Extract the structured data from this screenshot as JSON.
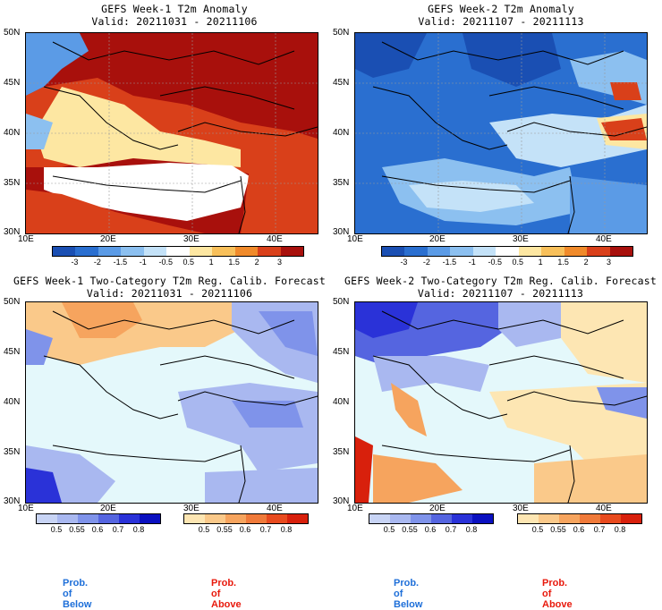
{
  "panels": [
    {
      "title": "GEFS Week-1 T2m Anomaly",
      "valid": "Valid: 20211031 - 20211106"
    },
    {
      "title": "GEFS Week-2 T2m Anomaly",
      "valid": "Valid: 20211107 - 20211113"
    },
    {
      "title": "GEFS Week-1 Two-Category T2m Reg. Calib. Forecast",
      "valid": "Valid: 20211031 - 20211106"
    },
    {
      "title": "GEFS Week-2 Two-Category T2m Reg. Calib. Forecast",
      "valid": "Valid: 20211107 - 20211113"
    }
  ],
  "lat_labels": [
    "50N",
    "45N",
    "40N",
    "35N",
    "30N"
  ],
  "lon_labels": [
    "10E",
    "20E",
    "30E",
    "40E"
  ],
  "anomaly_scale": {
    "labels": [
      "-3",
      "-2",
      "-1.5",
      "-1",
      "-0.5",
      "0.5",
      "1",
      "1.5",
      "2",
      "3"
    ],
    "colors": [
      "#1a4fb3",
      "#2a6fd0",
      "#5b9be6",
      "#8cc0f0",
      "#c4e2f8",
      "#ffffff",
      "#fde7a2",
      "#f8c05a",
      "#f08a2a",
      "#d9401a",
      "#a8100c"
    ]
  },
  "prob_below_scale": {
    "labels": [
      "0.5",
      "0.55",
      "0.6",
      "0.7",
      "0.8"
    ],
    "colors": [
      "#c8d4f5",
      "#a9b8f0",
      "#7f93ea",
      "#5565e0",
      "#2a32d8",
      "#0a10c0"
    ]
  },
  "prob_above_scale": {
    "labels": [
      "0.5",
      "0.55",
      "0.6",
      "0.7",
      "0.8"
    ],
    "colors": [
      "#fde6b3",
      "#fac98a",
      "#f6a45e",
      "#f07a3a",
      "#e84a1e",
      "#d8200c"
    ]
  },
  "legend": {
    "below": "Prob. of Below",
    "above": "Prob. of Above",
    "below_color": "#1e6fd9",
    "above_color": "#e8190c"
  }
}
